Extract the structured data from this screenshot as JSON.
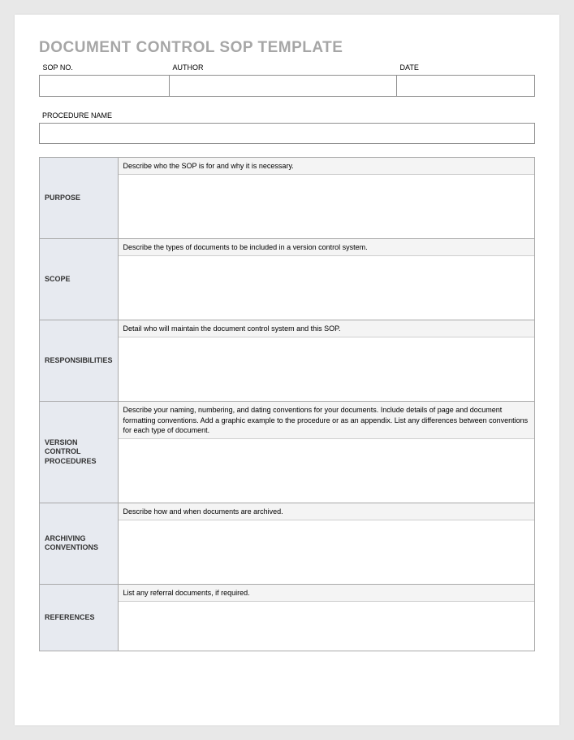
{
  "title": "DOCUMENT CONTROL SOP TEMPLATE",
  "header": {
    "sop_no_label": "SOP NO.",
    "author_label": "AUTHOR",
    "date_label": "DATE",
    "sop_no_value": "",
    "author_value": "",
    "date_value": ""
  },
  "procedure": {
    "label": "PROCEDURE NAME",
    "value": ""
  },
  "sections": [
    {
      "label": "PURPOSE",
      "hint": "Describe who the SOP is for and why it is necessary.",
      "body": ""
    },
    {
      "label": "SCOPE",
      "hint": "Describe the types of documents to be included in a version control system.",
      "body": ""
    },
    {
      "label": "RESPONSIBILITIES",
      "hint": "Detail who will maintain the document control system and this SOP.",
      "body": ""
    },
    {
      "label": "VERSION CONTROL PROCEDURES",
      "hint": "Describe your naming, numbering, and dating conventions for your documents. Include details of page and document formatting conventions.  Add a graphic example to the procedure or as an appendix.  List any differences between conventions for each type of document.",
      "body": ""
    },
    {
      "label": "ARCHIVING CONVENTIONS",
      "hint": "Describe how and when documents are archived.",
      "body": ""
    },
    {
      "label": "REFERENCES",
      "hint": "List any referral documents, if required.",
      "body": ""
    }
  ],
  "colors": {
    "page_bg": "#e8e8e8",
    "sheet_bg": "#ffffff",
    "title_color": "#a6a6a6",
    "label_bg": "#e7eaf0",
    "hint_bg": "#f4f4f4",
    "border": "#a9a9a9"
  }
}
